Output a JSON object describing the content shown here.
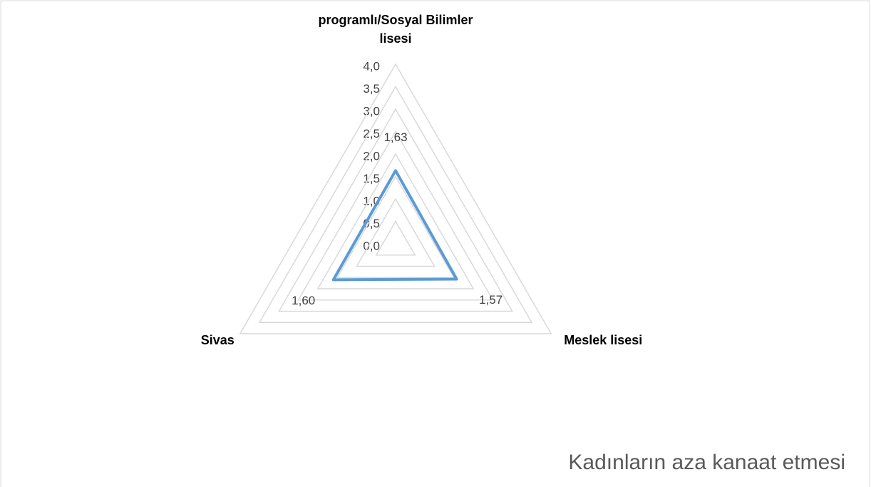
{
  "chart_data": {
    "type": "radar",
    "title": "Kadınların aza kanaat etmesi",
    "categories": [
      "programlı/Sosyal Bilimler lisesi",
      "Meslek lisesi",
      "Sivas"
    ],
    "series": [
      {
        "color": "#5b9bd5",
        "values": [
          1.63,
          1.57,
          1.6
        ],
        "value_labels": [
          "1,63",
          "1,57",
          "1,60"
        ]
      }
    ],
    "rlim": [
      0,
      4
    ],
    "rticks": [
      {
        "value": 0,
        "label": "0,0"
      },
      {
        "value": 0.5,
        "label": "0,5"
      },
      {
        "value": 1,
        "label": "1,0"
      },
      {
        "value": 1.5,
        "label": "1,5"
      },
      {
        "value": 2,
        "label": "2,0"
      },
      {
        "value": 2.5,
        "label": "2,5"
      },
      {
        "value": 3,
        "label": "3,0"
      },
      {
        "value": 3.5,
        "label": "3,5"
      },
      {
        "value": 4,
        "label": "4,0"
      }
    ],
    "grid": true
  }
}
